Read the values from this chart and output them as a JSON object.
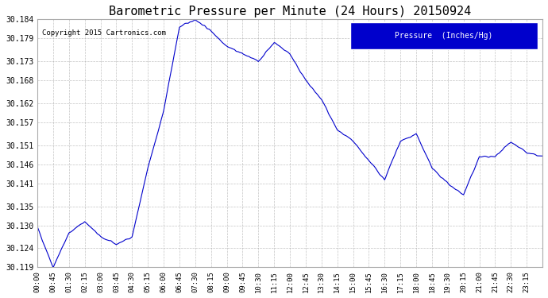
{
  "title": "Barometric Pressure per Minute (24 Hours) 20150924",
  "copyright_text": "Copyright 2015 Cartronics.com",
  "legend_label": "Pressure  (Inches/Hg)",
  "line_color": "#0000CC",
  "background_color": "#ffffff",
  "plot_bg_color": "#ffffff",
  "grid_color": "#aaaaaa",
  "ylim": [
    30.119,
    30.184
  ],
  "yticks": [
    30.119,
    30.124,
    30.13,
    30.135,
    30.141,
    30.146,
    30.151,
    30.157,
    30.162,
    30.168,
    30.173,
    30.179,
    30.184
  ],
  "ytick_labels": [
    "30.119",
    "30.124",
    "30.130",
    "30.135",
    "30.141",
    "30.146",
    "30.151",
    "30.157",
    "30.162",
    "30.168",
    "30.173",
    "30.179",
    "30.184"
  ],
  "xtick_labels": [
    "00:00",
    "00:45",
    "01:30",
    "02:15",
    "03:00",
    "03:45",
    "04:30",
    "05:15",
    "06:00",
    "06:45",
    "07:30",
    "08:15",
    "09:00",
    "09:45",
    "10:30",
    "11:15",
    "12:00",
    "12:45",
    "13:30",
    "14:15",
    "15:00",
    "15:45",
    "16:30",
    "17:15",
    "18:00",
    "18:45",
    "19:30",
    "20:15",
    "21:00",
    "21:45",
    "22:30",
    "23:15"
  ],
  "n_points": 1440,
  "key_times": [
    0,
    45,
    90,
    135,
    180,
    225,
    270,
    315,
    360,
    405,
    450,
    495,
    540,
    585,
    630,
    675,
    720,
    765,
    810,
    855,
    900,
    945,
    990,
    1035,
    1080,
    1125,
    1170,
    1215,
    1260,
    1305,
    1350,
    1395,
    1440
  ],
  "key_values": [
    30.1295,
    30.119,
    30.128,
    30.131,
    30.127,
    30.125,
    30.127,
    30.145,
    30.16,
    30.182,
    30.184,
    30.181,
    30.177,
    30.175,
    30.173,
    30.178,
    30.175,
    30.168,
    30.163,
    30.155,
    30.152,
    30.147,
    30.142,
    30.152,
    30.154,
    30.145,
    30.141,
    30.138,
    30.148,
    30.148,
    30.152,
    30.149,
    30.148
  ]
}
